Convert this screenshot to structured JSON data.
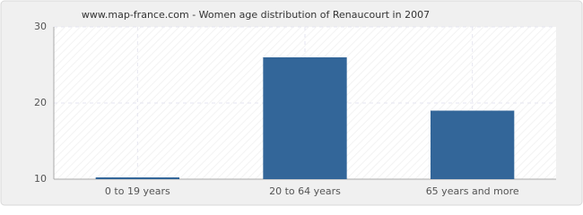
{
  "chart_data": {
    "type": "bar",
    "title": "www.map-france.com - Women age distribution of Renaucourt in 2007",
    "categories": [
      "0 to 19 years",
      "20 to 64 years",
      "65 years and more"
    ],
    "values": [
      10,
      26,
      19
    ],
    "color": "#336699",
    "ylim": [
      10,
      30
    ],
    "yticks": [
      10,
      20,
      30
    ],
    "grid": true
  }
}
